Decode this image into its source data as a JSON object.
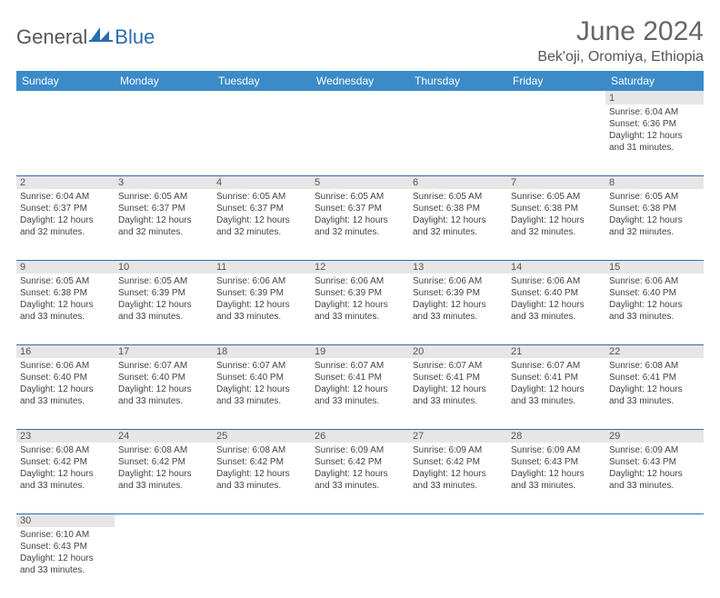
{
  "logo": {
    "general": "General",
    "blue": "Blue"
  },
  "title": "June 2024",
  "location": "Bek'oji, Oromiya, Ethiopia",
  "colors": {
    "header_bg": "#3b8bc9",
    "border": "#2a6db0",
    "daynum_bg": "#e6e6e6",
    "text": "#444444",
    "title": "#666666"
  },
  "daynames": [
    "Sunday",
    "Monday",
    "Tuesday",
    "Wednesday",
    "Thursday",
    "Friday",
    "Saturday"
  ],
  "weeks": [
    [
      null,
      null,
      null,
      null,
      null,
      null,
      {
        "n": "1",
        "sr": "6:04 AM",
        "ss": "6:36 PM",
        "dl": "12 hours and 31 minutes."
      }
    ],
    [
      {
        "n": "2",
        "sr": "6:04 AM",
        "ss": "6:37 PM",
        "dl": "12 hours and 32 minutes."
      },
      {
        "n": "3",
        "sr": "6:05 AM",
        "ss": "6:37 PM",
        "dl": "12 hours and 32 minutes."
      },
      {
        "n": "4",
        "sr": "6:05 AM",
        "ss": "6:37 PM",
        "dl": "12 hours and 32 minutes."
      },
      {
        "n": "5",
        "sr": "6:05 AM",
        "ss": "6:37 PM",
        "dl": "12 hours and 32 minutes."
      },
      {
        "n": "6",
        "sr": "6:05 AM",
        "ss": "6:38 PM",
        "dl": "12 hours and 32 minutes."
      },
      {
        "n": "7",
        "sr": "6:05 AM",
        "ss": "6:38 PM",
        "dl": "12 hours and 32 minutes."
      },
      {
        "n": "8",
        "sr": "6:05 AM",
        "ss": "6:38 PM",
        "dl": "12 hours and 32 minutes."
      }
    ],
    [
      {
        "n": "9",
        "sr": "6:05 AM",
        "ss": "6:38 PM",
        "dl": "12 hours and 33 minutes."
      },
      {
        "n": "10",
        "sr": "6:05 AM",
        "ss": "6:39 PM",
        "dl": "12 hours and 33 minutes."
      },
      {
        "n": "11",
        "sr": "6:06 AM",
        "ss": "6:39 PM",
        "dl": "12 hours and 33 minutes."
      },
      {
        "n": "12",
        "sr": "6:06 AM",
        "ss": "6:39 PM",
        "dl": "12 hours and 33 minutes."
      },
      {
        "n": "13",
        "sr": "6:06 AM",
        "ss": "6:39 PM",
        "dl": "12 hours and 33 minutes."
      },
      {
        "n": "14",
        "sr": "6:06 AM",
        "ss": "6:40 PM",
        "dl": "12 hours and 33 minutes."
      },
      {
        "n": "15",
        "sr": "6:06 AM",
        "ss": "6:40 PM",
        "dl": "12 hours and 33 minutes."
      }
    ],
    [
      {
        "n": "16",
        "sr": "6:06 AM",
        "ss": "6:40 PM",
        "dl": "12 hours and 33 minutes."
      },
      {
        "n": "17",
        "sr": "6:07 AM",
        "ss": "6:40 PM",
        "dl": "12 hours and 33 minutes."
      },
      {
        "n": "18",
        "sr": "6:07 AM",
        "ss": "6:40 PM",
        "dl": "12 hours and 33 minutes."
      },
      {
        "n": "19",
        "sr": "6:07 AM",
        "ss": "6:41 PM",
        "dl": "12 hours and 33 minutes."
      },
      {
        "n": "20",
        "sr": "6:07 AM",
        "ss": "6:41 PM",
        "dl": "12 hours and 33 minutes."
      },
      {
        "n": "21",
        "sr": "6:07 AM",
        "ss": "6:41 PM",
        "dl": "12 hours and 33 minutes."
      },
      {
        "n": "22",
        "sr": "6:08 AM",
        "ss": "6:41 PM",
        "dl": "12 hours and 33 minutes."
      }
    ],
    [
      {
        "n": "23",
        "sr": "6:08 AM",
        "ss": "6:42 PM",
        "dl": "12 hours and 33 minutes."
      },
      {
        "n": "24",
        "sr": "6:08 AM",
        "ss": "6:42 PM",
        "dl": "12 hours and 33 minutes."
      },
      {
        "n": "25",
        "sr": "6:08 AM",
        "ss": "6:42 PM",
        "dl": "12 hours and 33 minutes."
      },
      {
        "n": "26",
        "sr": "6:09 AM",
        "ss": "6:42 PM",
        "dl": "12 hours and 33 minutes."
      },
      {
        "n": "27",
        "sr": "6:09 AM",
        "ss": "6:42 PM",
        "dl": "12 hours and 33 minutes."
      },
      {
        "n": "28",
        "sr": "6:09 AM",
        "ss": "6:43 PM",
        "dl": "12 hours and 33 minutes."
      },
      {
        "n": "29",
        "sr": "6:09 AM",
        "ss": "6:43 PM",
        "dl": "12 hours and 33 minutes."
      }
    ],
    [
      {
        "n": "30",
        "sr": "6:10 AM",
        "ss": "6:43 PM",
        "dl": "12 hours and 33 minutes."
      },
      null,
      null,
      null,
      null,
      null,
      null
    ]
  ],
  "labels": {
    "sunrise": "Sunrise: ",
    "sunset": "Sunset: ",
    "daylight": "Daylight: "
  }
}
